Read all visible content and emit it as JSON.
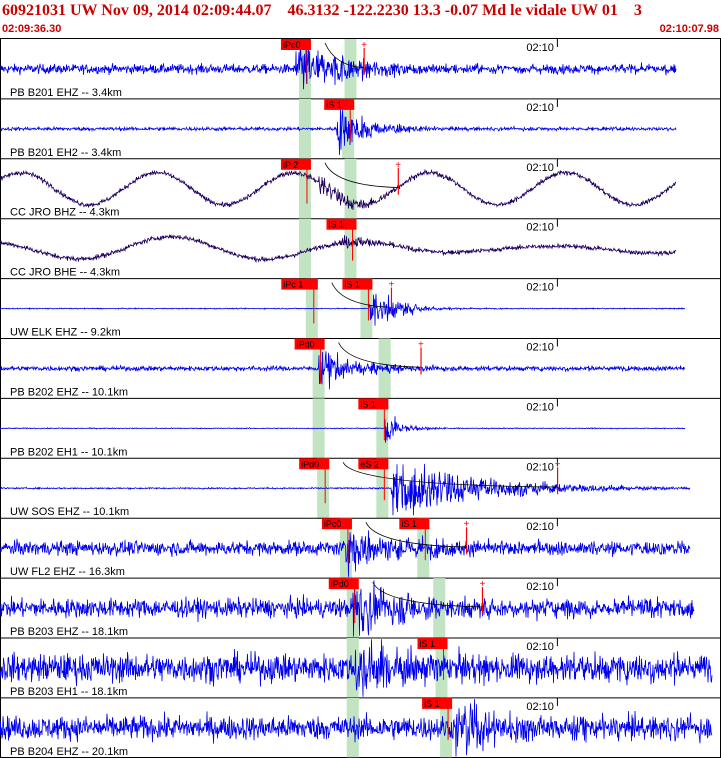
{
  "header": {
    "title": "60921031 UW Nov 09, 2014 02:09:44.07    46.3132 -122.2230 13.3 -0.07 Md le vidale UW 01    3",
    "start_time": "02:09:36.30",
    "end_time": "02:10:07.98"
  },
  "colors": {
    "accent_red": "#cc0000",
    "trace_blue": "#0000ee",
    "trace_dark": "#200060",
    "window_green": "#c2e4c2",
    "pick_red": "#ff0000"
  },
  "chart_data": {
    "type": "line",
    "title": "60921031 UW Nov 09, 2014 02:09:44.07    46.3132 -122.2230 13.3 -0.07 Md le vidale UW 01    3",
    "x_axis": {
      "start": "02:09:36.30",
      "end": "02:10:07.98",
      "range_seconds": [
        0,
        31.68
      ],
      "tick_label": "02:10",
      "tick_seconds": 23.7
    },
    "traces": [
      {
        "label": "PB B201 EHZ -- 3.4km",
        "color": "dark-blue-green",
        "kind": "noise",
        "amp": 4,
        "onset": 13.0,
        "peak": 20,
        "decay": 2.5,
        "p": {
          "label": "iPc0",
          "t": 13.4
        },
        "s": {
          "label": "",
          "t": 15.4
        },
        "extra_pick": 16.0,
        "end": 29.7
      },
      {
        "label": "PB B201 EH2 -- 3.4km",
        "color": "blue",
        "kind": "noise",
        "amp": 1.5,
        "onset": 14.8,
        "peak": 18,
        "decay": 1.5,
        "p": {
          "label": "",
          "t": 13.4
        },
        "s": {
          "label": "iS 1",
          "t": 15.3
        },
        "extra_pick": null,
        "end": 29.7
      },
      {
        "label": "CC JRO BHZ -- 4.3km",
        "color": "dark",
        "kind": "wave",
        "amp": 16,
        "onset": 14.0,
        "peak": 8,
        "decay": 2.0,
        "p": {
          "label": "iP 2",
          "t": 13.4
        },
        "s": {
          "label": "",
          "t": 15.4
        },
        "extra_pick": 17.5,
        "end": 29.7
      },
      {
        "label": "CC JRO BHE -- 4.3km",
        "color": "dark",
        "kind": "wave2",
        "amp": 12,
        "onset": 15.0,
        "peak": 5,
        "decay": 2.0,
        "p": {
          "label": "",
          "t": 13.4
        },
        "s": {
          "label": "iS 1",
          "t": 15.4
        },
        "extra_pick": null,
        "end": 29.7
      },
      {
        "label": "UW ELK EHZ -- 9.2km",
        "color": "blue",
        "kind": "flat",
        "amp": 0.4,
        "onset": 16.2,
        "peak": 18,
        "decay": 1.2,
        "p": {
          "label": "iPc 1",
          "t": 13.7
        },
        "s": {
          "label": "iS 1",
          "t": 16.1
        },
        "extra_pick": 17.2,
        "end": 30.1
      },
      {
        "label": "PB B202 EHZ -- 10.1km",
        "color": "blue",
        "kind": "noise",
        "amp": 2,
        "onset": 14.0,
        "peak": 15,
        "decay": 1.8,
        "p": {
          "label": "iPd0",
          "t": 14.0
        },
        "s": {
          "label": "",
          "t": 16.9
        },
        "extra_pick": 18.5,
        "end": 30.1
      },
      {
        "label": "PB B202 EH1 -- 10.1km",
        "color": "blue",
        "kind": "flat",
        "amp": 0.4,
        "onset": 16.9,
        "peak": 12,
        "decay": 0.8,
        "p": {
          "label": "",
          "t": 14.0
        },
        "s": {
          "label": "iS 1",
          "t": 16.8
        },
        "extra_pick": null,
        "end": 30.1
      },
      {
        "label": "UW SOS EHZ -- 10.1km",
        "color": "blue",
        "kind": "flat",
        "amp": 0.6,
        "onset": 17.2,
        "peak": 22,
        "decay": 4.0,
        "p": {
          "label": "iPd0",
          "t": 14.2
        },
        "s": {
          "label": "eS 2",
          "t": 16.8
        },
        "extra_pick": 24.5,
        "end": 30.3
      },
      {
        "label": "UW FL2 EHZ -- 16.3km",
        "color": "blue",
        "kind": "noise",
        "amp": 6,
        "onset": 15.2,
        "peak": 20,
        "decay": 2.5,
        "p": {
          "label": "iPc0",
          "t": 15.2
        },
        "s": {
          "label": "iS 1",
          "t": 18.6
        },
        "extra_pick": 20.5,
        "end": 30.3
      },
      {
        "label": "PB B203 EHZ -- 18.1km",
        "color": "blue",
        "kind": "noise",
        "amp": 8,
        "onset": 15.5,
        "peak": 22,
        "decay": 2.5,
        "p": {
          "label": "iPd0",
          "t": 15.5
        },
        "s": {
          "label": "",
          "t": 19.3
        },
        "extra_pick": 21.2,
        "end": 30.5
      },
      {
        "label": "PB B203 EH1 -- 18.1km",
        "color": "blue",
        "kind": "noise",
        "amp": 12,
        "onset": 15.6,
        "peak": 22,
        "decay": 2.5,
        "p": {
          "label": "",
          "t": 15.5
        },
        "s": {
          "label": "iS 1",
          "t": 19.4
        },
        "extra_pick": null,
        "end": 31.3
      },
      {
        "label": "PB B204 EHZ -- 20.1km",
        "color": "blue",
        "kind": "noise",
        "amp": 10,
        "onset": 20.0,
        "peak": 25,
        "decay": 2.0,
        "p": {
          "label": "",
          "t": 15.5
        },
        "s": {
          "label": "iS 1",
          "t": 19.6
        },
        "extra_pick": null,
        "end": 31.3
      }
    ],
    "grid": false,
    "legend": "none"
  }
}
